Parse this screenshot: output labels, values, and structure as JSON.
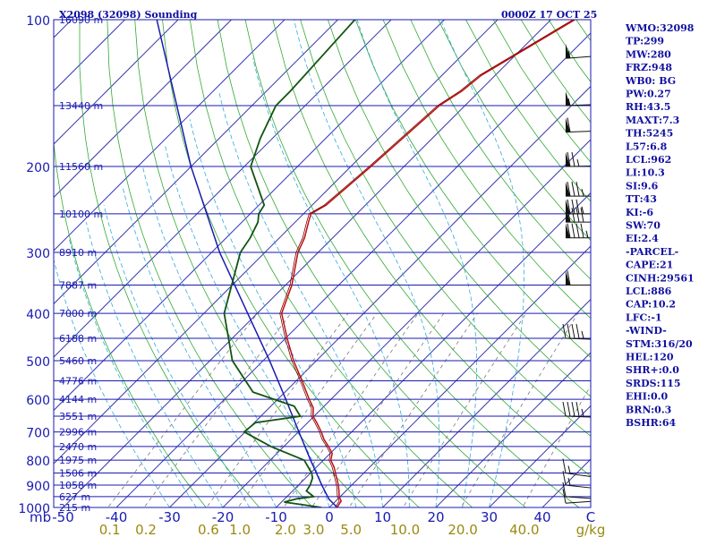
{
  "header": {
    "station": "X2098 (32098) Sounding",
    "time": "0000Z 17 OCT 25"
  },
  "side_panel": [
    "WMO:32098",
    "TP:299",
    "MW:280",
    "FRZ:948",
    "WB0: BG",
    "PW:0.27",
    "RH:43.5",
    "MAXT:7.3",
    "TH:5245",
    "L57:6.8",
    "LCL:962",
    "LI:10.3",
    "SI:9.6",
    "TT:43",
    "KI:-6",
    "SW:70",
    "EI:2.4",
    "-PARCEL-",
    "CAPE:21",
    "CINH:29561",
    "LCL:886",
    "CAP:10.2",
    "LFC:-1",
    "-WIND-",
    "STM:316/20",
    "HEL:120",
    "SHR+:0.0",
    "SRDS:115",
    "EHI:0.0",
    "BRN:0.3",
    "BSHR:64"
  ],
  "colors": {
    "isobar": "#1a1ab0",
    "isotherm": "#3a3ab0",
    "dry_adiabat": "#33aa33",
    "moist_adiabat": "#33aadd",
    "mixing_ratio": "#777777",
    "temperature": "#bb1111",
    "dewpoint": "#115511",
    "parcel": "#1a1ab0",
    "wind": "#111111",
    "text": "#1010a0",
    "ratio_label": "#9a8a10"
  },
  "chart_data": {
    "type": "skew-t",
    "title": "X2098 (32098) Sounding",
    "xlabel": "C",
    "ylabel": "mb",
    "pressure_range_mb": [
      1000,
      100
    ],
    "temperature_ticks": [
      {
        "value": -50,
        "label": "-50"
      },
      {
        "value": -40,
        "label": "-40"
      },
      {
        "value": -30,
        "label": "-30"
      },
      {
        "value": -20,
        "label": "-20"
      },
      {
        "value": -10,
        "label": "-10"
      },
      {
        "value": 0,
        "label": "0"
      },
      {
        "value": 10,
        "label": "10"
      },
      {
        "value": 20,
        "label": "20"
      },
      {
        "value": 30,
        "label": "30"
      },
      {
        "value": 40,
        "label": "40"
      }
    ],
    "temp_unit_label": "C",
    "pressure_levels": [
      1000,
      900,
      800,
      700,
      600,
      500,
      400,
      300,
      200,
      100
    ],
    "pressure_labels": [
      {
        "p": 1000,
        "label": "1000"
      },
      {
        "p": 900,
        "label": "900"
      },
      {
        "p": 800,
        "label": "800"
      },
      {
        "p": 700,
        "label": "700"
      },
      {
        "p": 600,
        "label": "600"
      },
      {
        "p": 500,
        "label": "500"
      },
      {
        "p": 400,
        "label": "400"
      },
      {
        "p": 300,
        "label": "300"
      },
      {
        "p": 200,
        "label": "200"
      },
      {
        "p": 100,
        "label": "100"
      }
    ],
    "corner_unit_label": "mb",
    "height_labels": [
      {
        "p": 100,
        "label": "16090 m"
      },
      {
        "p": 150,
        "label": "13440 m"
      },
      {
        "p": 200,
        "label": "11560 m"
      },
      {
        "p": 250,
        "label": "10100 m"
      },
      {
        "p": 300,
        "label": "8910 m"
      },
      {
        "p": 350,
        "label": "7887 m"
      },
      {
        "p": 400,
        "label": "7000 m"
      },
      {
        "p": 450,
        "label": "6188 m"
      },
      {
        "p": 500,
        "label": "5460 m"
      },
      {
        "p": 550,
        "label": "4776 m"
      },
      {
        "p": 600,
        "label": "4144 m"
      },
      {
        "p": 650,
        "label": "3551 m"
      },
      {
        "p": 700,
        "label": "2996 m"
      },
      {
        "p": 750,
        "label": "2470 m"
      },
      {
        "p": 800,
        "label": "1975 m"
      },
      {
        "p": 850,
        "label": "1506 m"
      },
      {
        "p": 900,
        "label": "1058 m"
      },
      {
        "p": 950,
        "label": "627 m"
      },
      {
        "p": 1000,
        "label": "215 m"
      }
    ],
    "mixing_ratio_ticks": [
      {
        "value": 0.1,
        "label": "0.1"
      },
      {
        "value": 0.2,
        "label": "0.2"
      },
      {
        "value": 0.6,
        "label": "0.6"
      },
      {
        "value": 1.0,
        "label": "1.0"
      },
      {
        "value": 2.0,
        "label": "2.0"
      },
      {
        "value": 3.0,
        "label": "3.0"
      },
      {
        "value": 5.0,
        "label": "5.0"
      },
      {
        "value": 10.0,
        "label": "10.0"
      },
      {
        "value": 20.0,
        "label": "20.0"
      },
      {
        "value": 40.0,
        "label": "40.0"
      }
    ],
    "mixing_ratio_unit": "g/kg",
    "temperature_profile": [
      {
        "p": 1000,
        "t": 1.5
      },
      {
        "p": 990,
        "t": 1.3
      },
      {
        "p": 970,
        "t": 1.0
      },
      {
        "p": 950,
        "t": -0.2
      },
      {
        "p": 925,
        "t": -1.3
      },
      {
        "p": 900,
        "t": -2.5
      },
      {
        "p": 875,
        "t": -3.9
      },
      {
        "p": 850,
        "t": -5.3
      },
      {
        "p": 825,
        "t": -6.8
      },
      {
        "p": 800,
        "t": -8.6
      },
      {
        "p": 775,
        "t": -9.6
      },
      {
        "p": 750,
        "t": -11.6
      },
      {
        "p": 725,
        "t": -13.8
      },
      {
        "p": 700,
        "t": -15.7
      },
      {
        "p": 670,
        "t": -18.3
      },
      {
        "p": 650,
        "t": -20.2
      },
      {
        "p": 625,
        "t": -21.7
      },
      {
        "p": 600,
        "t": -24.1
      },
      {
        "p": 550,
        "t": -28.9
      },
      {
        "p": 500,
        "t": -34.3
      },
      {
        "p": 450,
        "t": -39.7
      },
      {
        "p": 400,
        "t": -45.4
      },
      {
        "p": 350,
        "t": -48.8
      },
      {
        "p": 300,
        "t": -53.8
      },
      {
        "p": 280,
        "t": -55.3
      },
      {
        "p": 260,
        "t": -57.5
      },
      {
        "p": 250,
        "t": -58.6
      },
      {
        "p": 240,
        "t": -57.4
      },
      {
        "p": 200,
        "t": -56.2
      },
      {
        "p": 150,
        "t": -54.8
      },
      {
        "p": 140,
        "t": -53.3
      },
      {
        "p": 130,
        "t": -52.6
      },
      {
        "p": 100,
        "t": -45.5
      }
    ],
    "dewpoint_profile": [
      {
        "p": 1000,
        "t": -1.5
      },
      {
        "p": 990,
        "t": -4.6
      },
      {
        "p": 975,
        "t": -9.5
      },
      {
        "p": 960,
        "t": -7.7
      },
      {
        "p": 950,
        "t": -5.0
      },
      {
        "p": 925,
        "t": -7.4
      },
      {
        "p": 900,
        "t": -7.8
      },
      {
        "p": 870,
        "t": -8.7
      },
      {
        "p": 850,
        "t": -9.8
      },
      {
        "p": 800,
        "t": -13.6
      },
      {
        "p": 750,
        "t": -22.4
      },
      {
        "p": 700,
        "t": -30.2
      },
      {
        "p": 670,
        "t": -29.8
      },
      {
        "p": 650,
        "t": -22.6
      },
      {
        "p": 620,
        "t": -25.6
      },
      {
        "p": 580,
        "t": -36.0
      },
      {
        "p": 500,
        "t": -45.8
      },
      {
        "p": 400,
        "t": -56.2
      },
      {
        "p": 300,
        "t": -64.6
      },
      {
        "p": 280,
        "t": -65.5
      },
      {
        "p": 260,
        "t": -67.0
      },
      {
        "p": 250,
        "t": -68.4
      },
      {
        "p": 240,
        "t": -69.0
      },
      {
        "p": 200,
        "t": -78.8
      },
      {
        "p": 175,
        "t": -82.3
      },
      {
        "p": 150,
        "t": -85.5
      },
      {
        "p": 140,
        "t": -85.5
      },
      {
        "p": 100,
        "t": -86.8
      }
    ],
    "parcel_profile": [
      {
        "p": 1000,
        "t": 1.5
      },
      {
        "p": 962,
        "t": -1.6
      },
      {
        "p": 900,
        "t": -5.6
      },
      {
        "p": 850,
        "t": -8.9
      },
      {
        "p": 800,
        "t": -12.4
      },
      {
        "p": 700,
        "t": -19.9
      },
      {
        "p": 600,
        "t": -28.5
      },
      {
        "p": 500,
        "t": -38.8
      },
      {
        "p": 400,
        "t": -51.8
      },
      {
        "p": 300,
        "t": -68.5
      },
      {
        "p": 200,
        "t": -90.0
      },
      {
        "p": 100,
        "t": -124.0
      }
    ],
    "wind_barbs": [
      {
        "p": 980,
        "dir": 250,
        "speed_kt": 10
      },
      {
        "p": 950,
        "dir": 290,
        "speed_kt": 10
      },
      {
        "p": 900,
        "dir": 300,
        "speed_kt": 15
      },
      {
        "p": 850,
        "dir": 310,
        "speed_kt": 15
      },
      {
        "p": 650,
        "dir": 280,
        "speed_kt": 45
      },
      {
        "p": 450,
        "dir": 280,
        "speed_kt": 45
      },
      {
        "p": 350,
        "dir": 270,
        "speed_kt": 60
      },
      {
        "p": 280,
        "dir": 270,
        "speed_kt": 95
      },
      {
        "p": 260,
        "dir": 270,
        "speed_kt": 90
      },
      {
        "p": 250,
        "dir": 270,
        "speed_kt": 85
      },
      {
        "p": 230,
        "dir": 270,
        "speed_kt": 85
      },
      {
        "p": 200,
        "dir": 265,
        "speed_kt": 75
      },
      {
        "p": 170,
        "dir": 260,
        "speed_kt": 60
      },
      {
        "p": 150,
        "dir": 260,
        "speed_kt": 55
      },
      {
        "p": 120,
        "dir": 250,
        "speed_kt": 55
      }
    ]
  }
}
